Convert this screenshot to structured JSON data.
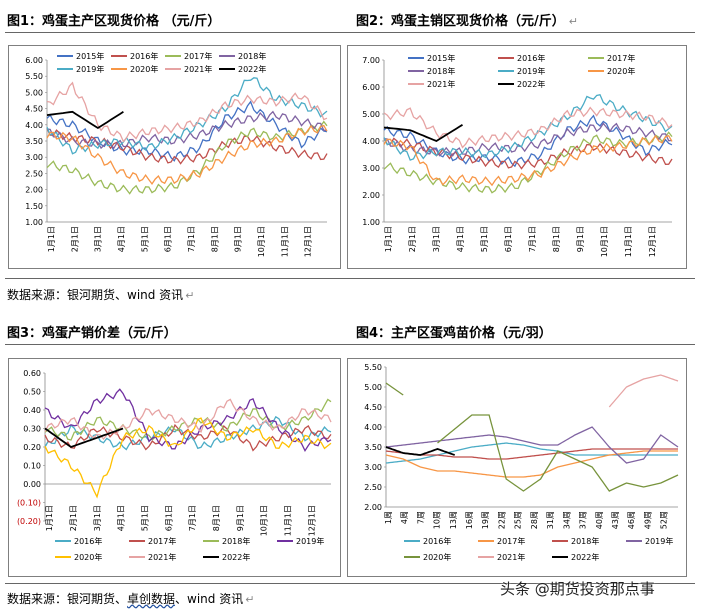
{
  "fig1_title": "图1：鸡蛋主产区现货价格 （元/斤）",
  "fig2_title": "图2：鸡蛋主销区现货价格（元/斤）",
  "fig3_title": "图3：鸡蛋产销价差（元/斤）",
  "fig4_title": "图4：主产区蛋鸡苗价格（元/羽）",
  "return_mark": "↵",
  "source1": {
    "prefix": "数据来源：银河期货、wind 资讯"
  },
  "source2": {
    "prefix": "数据来源：银河期货、",
    "sq": "卓创数据",
    "suffix": "、wind 资讯"
  },
  "watermark": "头条 @期货投资那点事",
  "chart_data": [
    {
      "id": "fig1",
      "type": "line",
      "ylim": [
        1.0,
        6.0
      ],
      "yticks": [
        "1.00",
        "1.50",
        "2.00",
        "2.50",
        "3.00",
        "3.50",
        "4.00",
        "4.50",
        "5.00",
        "5.50",
        "6.00"
      ],
      "x_labels": [
        "1月1日",
        "2月1日",
        "3月1日",
        "4月1日",
        "5月1日",
        "6月1日",
        "7月1日",
        "8月1日",
        "9月1日",
        "10月1日",
        "11月1日",
        "12月1日"
      ],
      "series": [
        {
          "name": "2015年",
          "color": "#4472c4",
          "values": [
            4.2,
            4.0,
            3.5,
            3.2,
            3.2,
            3.0,
            3.3,
            4.2,
            4.6,
            4.0,
            3.4,
            3.9
          ]
        },
        {
          "name": "2016年",
          "color": "#c0504d",
          "values": [
            3.8,
            3.6,
            3.5,
            3.3,
            3.0,
            2.9,
            3.0,
            3.4,
            3.6,
            3.3,
            3.1,
            3.0
          ]
        },
        {
          "name": "2017年",
          "color": "#9bbb59",
          "values": [
            2.8,
            2.6,
            2.2,
            2.0,
            2.0,
            2.1,
            2.6,
            3.4,
            3.8,
            3.6,
            3.8,
            4.0
          ]
        },
        {
          "name": "2018年",
          "color": "#8064a2",
          "values": [
            3.8,
            3.5,
            3.4,
            3.4,
            3.6,
            3.5,
            3.7,
            4.0,
            4.2,
            4.3,
            4.1,
            3.9
          ]
        },
        {
          "name": "2019年",
          "color": "#4bacc6",
          "values": [
            3.9,
            3.2,
            3.4,
            3.5,
            3.3,
            3.6,
            4.0,
            4.5,
            5.5,
            4.8,
            4.6,
            4.3
          ]
        },
        {
          "name": "2020年",
          "color": "#f79646",
          "values": [
            3.7,
            3.6,
            3.0,
            2.5,
            2.3,
            2.3,
            2.5,
            3.0,
            3.4,
            3.5,
            3.8,
            3.9
          ]
        },
        {
          "name": "2021年",
          "color": "#e6a3a3",
          "values": [
            4.6,
            5.2,
            4.0,
            3.6,
            3.8,
            3.9,
            4.1,
            4.6,
            4.8,
            4.7,
            4.9,
            4.2
          ]
        },
        {
          "name": "2022年",
          "color": "#000000",
          "values": [
            4.3,
            4.4,
            3.9,
            4.4
          ]
        }
      ]
    },
    {
      "id": "fig2",
      "type": "line",
      "ylim": [
        1.0,
        7.0
      ],
      "yticks": [
        "1.00",
        "2.00",
        "3.00",
        "4.00",
        "5.00",
        "6.00",
        "7.00"
      ],
      "x_labels": [
        "1月1日",
        "2月1日",
        "3月1日",
        "4月1日",
        "5月1日",
        "6月1日",
        "7月1日",
        "8月1日",
        "9月1日",
        "10月1日",
        "11月1日",
        "12月1日"
      ],
      "series": [
        {
          "name": "2015年",
          "color": "#4472c4",
          "values": [
            4.4,
            4.2,
            3.6,
            3.3,
            3.4,
            3.2,
            3.5,
            4.4,
            4.8,
            4.3,
            3.6,
            4.0
          ]
        },
        {
          "name": "2016年",
          "color": "#c0504d",
          "values": [
            4.0,
            3.9,
            3.6,
            3.4,
            3.2,
            3.1,
            3.2,
            3.6,
            3.8,
            3.6,
            3.4,
            3.2
          ]
        },
        {
          "name": "2017年",
          "color": "#9bbb59",
          "values": [
            3.1,
            2.8,
            2.5,
            2.3,
            2.2,
            2.3,
            2.9,
            3.6,
            4.1,
            3.9,
            4.0,
            4.2
          ]
        },
        {
          "name": "2018年",
          "color": "#8064a2",
          "values": [
            4.0,
            3.7,
            3.6,
            3.6,
            3.8,
            3.7,
            3.9,
            4.3,
            4.5,
            4.5,
            4.3,
            4.1
          ]
        },
        {
          "name": "2019年",
          "color": "#4bacc6",
          "values": [
            4.1,
            3.4,
            3.6,
            3.6,
            3.5,
            3.8,
            4.3,
            4.9,
            5.7,
            5.2,
            4.8,
            4.4
          ]
        },
        {
          "name": "2020年",
          "color": "#f79646",
          "values": [
            4.0,
            3.8,
            2.5,
            2.6,
            2.5,
            2.6,
            2.8,
            3.3,
            3.7,
            3.8,
            4.0,
            4.1
          ]
        },
        {
          "name": "2021年",
          "color": "#e6a3a3",
          "values": [
            4.9,
            5.1,
            4.3,
            3.9,
            4.1,
            4.2,
            4.4,
            5.0,
            5.1,
            5.0,
            4.9,
            4.6
          ]
        },
        {
          "name": "2022年",
          "color": "#000000",
          "values": [
            4.5,
            4.4,
            4.0,
            4.6
          ]
        }
      ]
    },
    {
      "id": "fig3",
      "type": "line",
      "ylim": [
        -0.2,
        0.6
      ],
      "yticks": [
        "(0.20)",
        "(0.10)",
        "0.00",
        "0.10",
        "0.20",
        "0.30",
        "0.40",
        "0.50",
        "0.60"
      ],
      "x_labels": [
        "1月1日",
        "2月1日",
        "3月1日",
        "4月1日",
        "5月1日",
        "6月1日",
        "7月1日",
        "8月1日",
        "9月1日",
        "10月1日",
        "11月1日",
        "12月1日"
      ],
      "series": [
        {
          "name": "2016年",
          "color": "#4bacc6",
          "values": [
            0.2,
            0.3,
            0.25,
            0.2,
            0.25,
            0.3,
            0.2,
            0.25,
            0.3,
            0.35,
            0.25,
            0.3
          ]
        },
        {
          "name": "2017年",
          "color": "#c0504d",
          "values": [
            0.25,
            0.2,
            0.3,
            0.25,
            0.2,
            0.3,
            0.25,
            0.3,
            0.2,
            0.25,
            0.3,
            0.25
          ]
        },
        {
          "name": "2018年",
          "color": "#9bbb59",
          "values": [
            0.3,
            0.25,
            0.35,
            0.3,
            0.25,
            0.3,
            0.35,
            0.3,
            0.4,
            0.3,
            0.35,
            0.45
          ]
        },
        {
          "name": "2019年",
          "color": "#7030a0",
          "values": [
            0.4,
            0.3,
            0.45,
            0.5,
            0.25,
            0.2,
            0.3,
            0.35,
            0.45,
            0.3,
            0.2,
            0.25
          ]
        },
        {
          "name": "2020年",
          "color": "#ffc000",
          "values": [
            0.2,
            0.1,
            -0.05,
            0.25,
            0.3,
            0.2,
            0.35,
            0.25,
            0.3,
            0.2,
            0.25,
            0.2
          ]
        },
        {
          "name": "2021年",
          "color": "#e6a3a3",
          "values": [
            0.3,
            0.35,
            0.25,
            0.3,
            0.4,
            0.35,
            0.3,
            0.45,
            0.35,
            0.3,
            0.4,
            0.35
          ]
        },
        {
          "name": "2022年",
          "color": "#000000",
          "values": [
            0.3,
            0.2,
            0.25,
            0.3
          ]
        }
      ]
    },
    {
      "id": "fig4",
      "type": "line",
      "ylim": [
        2.0,
        5.5
      ],
      "yticks": [
        "2.00",
        "2.50",
        "3.00",
        "3.50",
        "4.00",
        "4.50",
        "5.00",
        "5.50"
      ],
      "x_labels": [
        "1周",
        "4周",
        "7周",
        "10周",
        "13周",
        "16周",
        "19周",
        "22周",
        "25周",
        "28周",
        "31周",
        "34周",
        "37周",
        "40周",
        "43周",
        "46周",
        "49周",
        "52周"
      ],
      "series": [
        {
          "name": "2016年",
          "color": "#4bacc6",
          "values": [
            3.1,
            3.15,
            3.2,
            3.3,
            3.4,
            3.5,
            3.55,
            3.6,
            3.55,
            3.45,
            3.4,
            3.3,
            3.3,
            3.3,
            3.3,
            3.3,
            3.3,
            3.3
          ]
        },
        {
          "name": "2017年",
          "color": "#f79646",
          "values": [
            3.3,
            3.2,
            3.0,
            2.9,
            2.9,
            2.85,
            2.8,
            2.75,
            2.75,
            2.8,
            3.0,
            3.1,
            3.2,
            3.3,
            3.35,
            3.4,
            3.4,
            3.4
          ]
        },
        {
          "name": "2018年",
          "color": "#c0504d",
          "values": [
            3.4,
            3.35,
            3.3,
            3.3,
            3.25,
            3.25,
            3.2,
            3.2,
            3.25,
            3.3,
            3.35,
            3.4,
            3.45,
            3.45,
            3.45,
            3.45,
            3.45,
            3.45
          ]
        },
        {
          "name": "2019年",
          "color": "#8064a2",
          "values": [
            3.5,
            3.55,
            3.6,
            3.65,
            3.7,
            3.75,
            3.8,
            3.75,
            3.65,
            3.55,
            3.55,
            3.8,
            4.0,
            3.5,
            3.1,
            3.2,
            3.8,
            3.5
          ]
        },
        {
          "name": "2020年",
          "color": "#77933c",
          "values": [
            5.1,
            4.8,
            null,
            3.6,
            3.95,
            4.3,
            4.3,
            2.7,
            2.4,
            2.7,
            3.4,
            3.2,
            3.0,
            2.4,
            2.6,
            2.5,
            2.6,
            2.8
          ]
        },
        {
          "name": "2021年",
          "color": "#e6a3a3",
          "values": [
            null,
            null,
            null,
            null,
            null,
            null,
            null,
            null,
            null,
            null,
            null,
            null,
            null,
            4.5,
            5.0,
            5.2,
            5.3,
            5.15
          ]
        },
        {
          "name": "2022年",
          "color": "#000000",
          "values": [
            3.5,
            3.35,
            3.3,
            3.45,
            3.3
          ]
        }
      ]
    }
  ]
}
